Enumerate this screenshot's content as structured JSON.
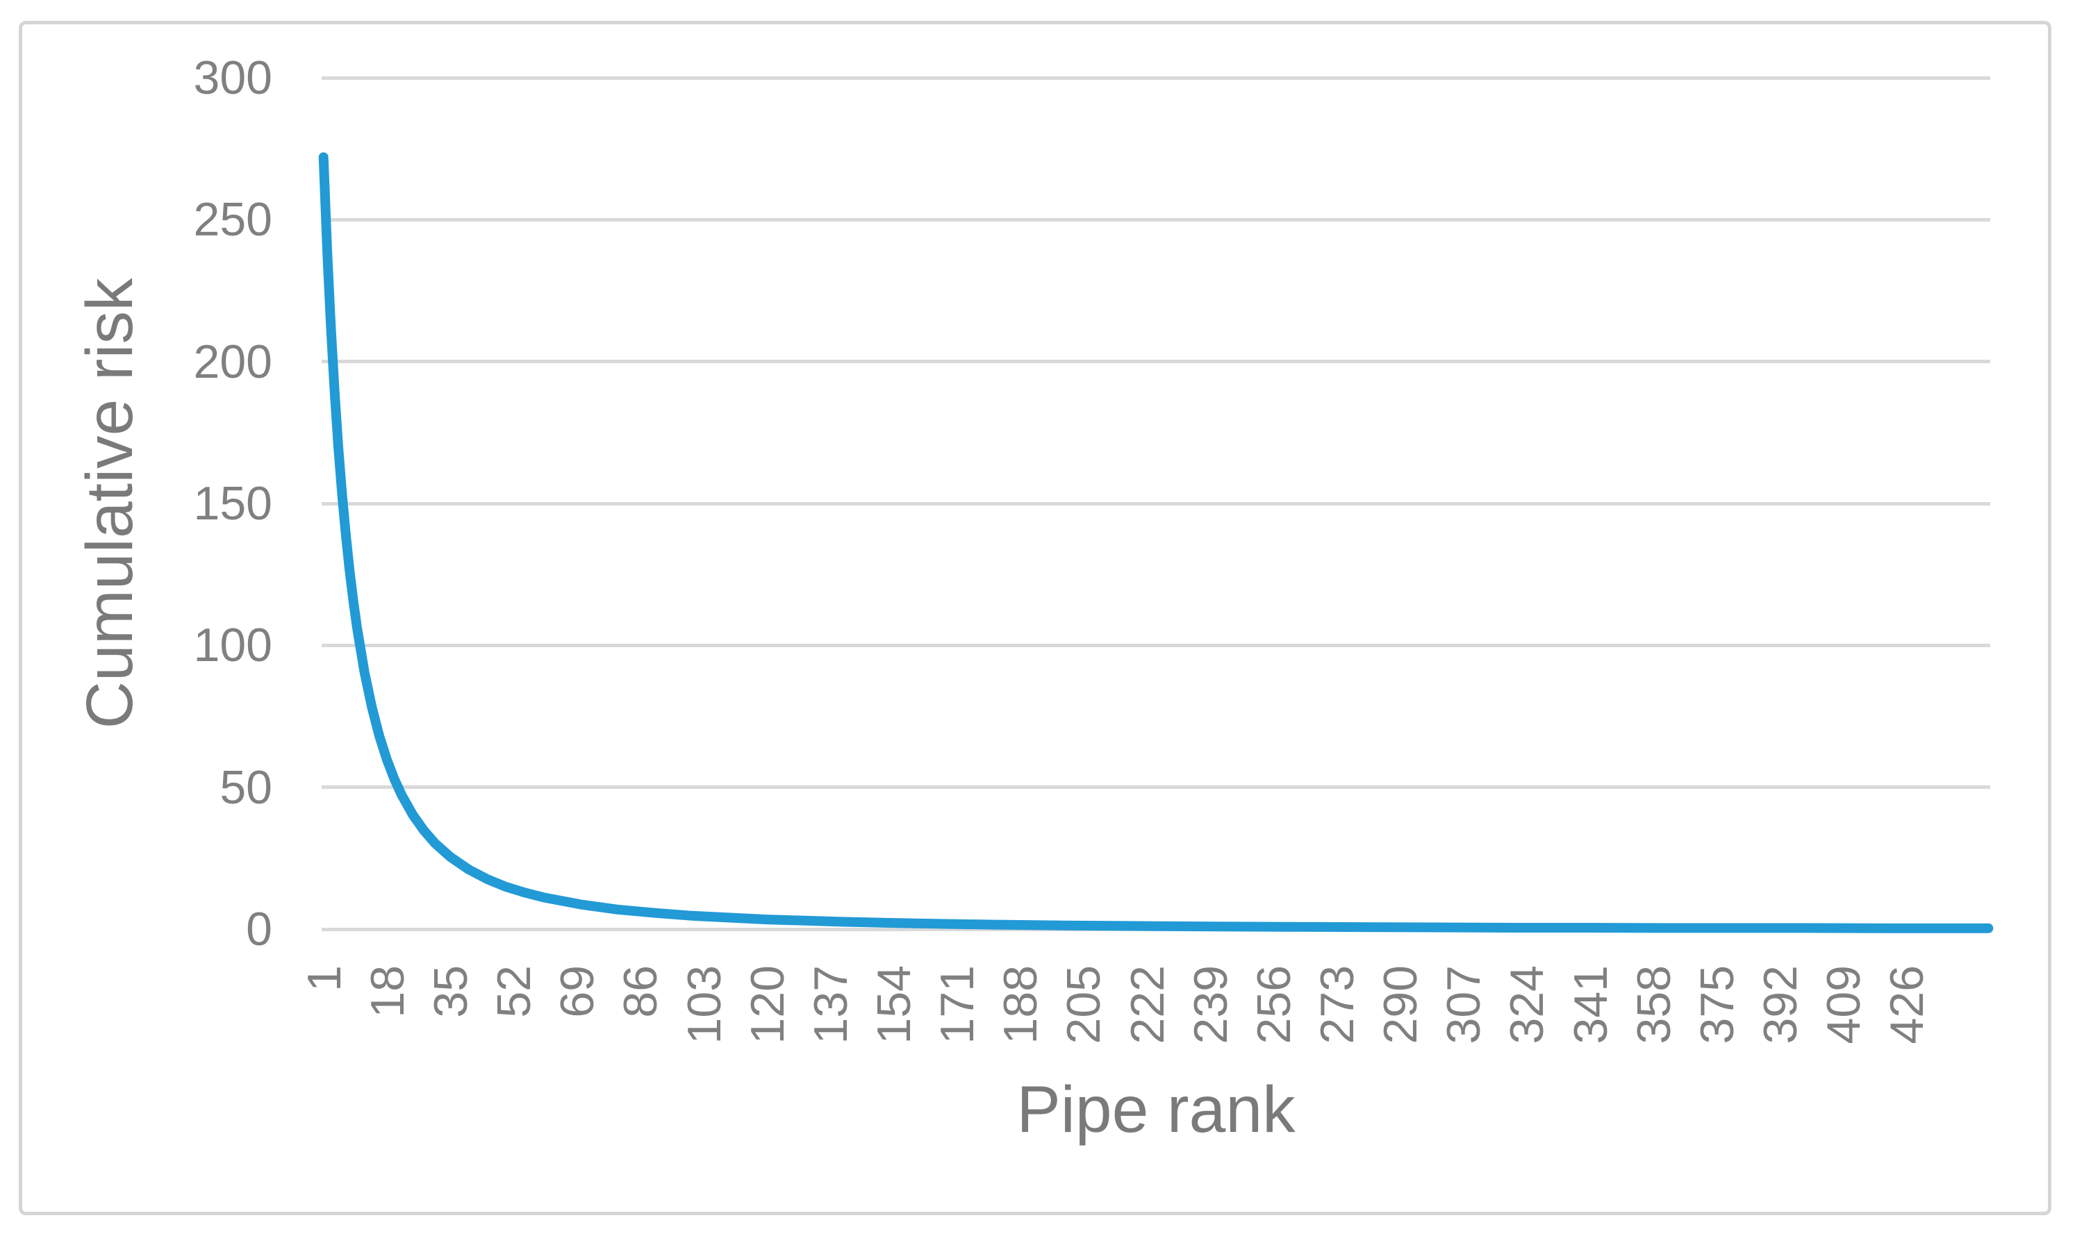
{
  "colors": {
    "accent_line": "#229ad6",
    "gridline": "#d9d9d9",
    "tick_text": "#808080",
    "axis_title_text": "#7a7a7a",
    "figure_border": "#d5d5d5",
    "background": "#ffffff"
  },
  "chart_data": {
    "type": "line",
    "title": "",
    "xlabel": "Pipe rank",
    "ylabel": "Cumulative risk",
    "ylim": [
      0,
      300
    ],
    "y_ticks": [
      0,
      50,
      100,
      150,
      200,
      250,
      300
    ],
    "x_tick_labels": [
      1,
      18,
      35,
      52,
      69,
      86,
      103,
      120,
      137,
      154,
      171,
      188,
      205,
      222,
      239,
      256,
      273,
      290,
      307,
      324,
      341,
      358,
      375,
      392,
      409,
      426
    ],
    "x_count": 448,
    "grid": "horizontal-only",
    "legend": "none",
    "series": [
      {
        "name": "Cumulative risk",
        "color": "#229ad6",
        "points": [
          [
            1,
            272
          ],
          [
            2,
            239.1
          ],
          [
            3,
            211.8
          ],
          [
            4,
            188.9
          ],
          [
            5,
            169.5
          ],
          [
            6,
            153
          ],
          [
            7,
            138.8
          ],
          [
            8,
            126.4
          ],
          [
            9,
            115.7
          ],
          [
            10,
            106.3
          ],
          [
            12,
            90.5
          ],
          [
            14,
            78.1
          ],
          [
            16,
            68
          ],
          [
            18,
            59.8
          ],
          [
            20,
            52.9
          ],
          [
            22,
            47.2
          ],
          [
            25,
            40.2
          ],
          [
            28,
            34.7
          ],
          [
            31,
            30.2
          ],
          [
            35,
            25.5
          ],
          [
            40,
            21
          ],
          [
            45,
            17.6
          ],
          [
            50,
            14.9
          ],
          [
            55,
            12.9
          ],
          [
            60,
            11.2
          ],
          [
            70,
            8.7
          ],
          [
            80,
            6.9
          ],
          [
            90,
            5.7
          ],
          [
            100,
            4.7
          ],
          [
            120,
            3.4
          ],
          [
            140,
            2.6
          ],
          [
            160,
            2
          ],
          [
            180,
            1.6
          ],
          [
            200,
            1.3
          ],
          [
            220,
            1.1
          ],
          [
            240,
            0.9
          ],
          [
            260,
            0.8
          ],
          [
            280,
            0.7
          ],
          [
            300,
            0.6
          ],
          [
            320,
            0.5
          ],
          [
            340,
            0.5
          ],
          [
            360,
            0.4
          ],
          [
            380,
            0.4
          ],
          [
            400,
            0.4
          ],
          [
            420,
            0.3
          ],
          [
            435,
            0.3
          ],
          [
            448,
            0.3
          ]
        ]
      }
    ]
  }
}
